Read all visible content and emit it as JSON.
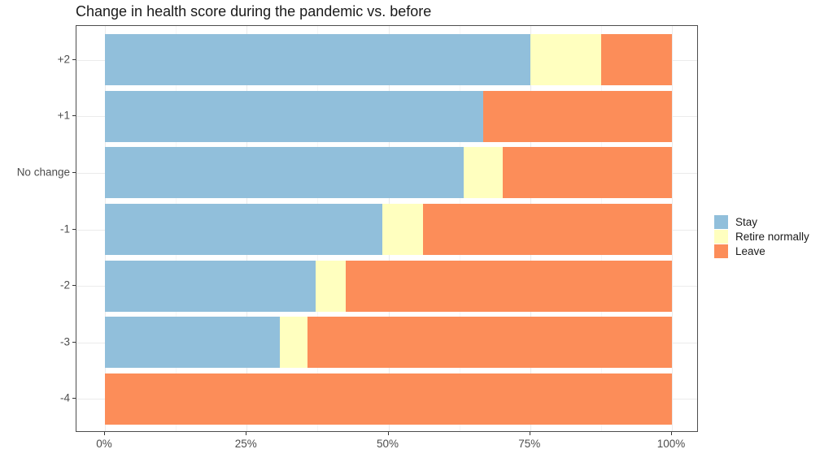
{
  "title": "Change in health score during the pandemic vs. before",
  "chart_data": {
    "type": "bar",
    "orientation": "horizontal",
    "stacked": true,
    "title": "Change in health score during the pandemic vs. before",
    "categories": [
      "+2",
      "+1",
      "No change",
      "-1",
      "-2",
      "-3",
      "-4"
    ],
    "series": [
      {
        "name": "Stay",
        "color": "#91bfdb",
        "values": [
          75.0,
          66.7,
          63.2,
          48.9,
          37.2,
          30.8,
          0
        ]
      },
      {
        "name": "Retire normally",
        "color": "#ffffbf",
        "values": [
          12.5,
          0,
          7.0,
          7.2,
          5.2,
          4.9,
          0
        ]
      },
      {
        "name": "Leave",
        "color": "#fc8d59",
        "values": [
          12.5,
          33.3,
          29.8,
          43.9,
          57.6,
          64.3,
          100
        ]
      }
    ],
    "xlabel": "",
    "ylabel": "",
    "xlim": [
      0,
      100
    ],
    "x_tick_values": [
      0,
      25,
      50,
      75,
      100
    ],
    "x_tick_labels": [
      "0%",
      "25%",
      "50%",
      "75%",
      "100%"
    ],
    "x_minor_tick_values": [
      12.5,
      37.5,
      62.5,
      87.5
    ],
    "grid": true,
    "legend_position": "right"
  },
  "legend": {
    "items": [
      {
        "label": "Stay",
        "color": "#91bfdb"
      },
      {
        "label": "Retire normally",
        "color": "#ffffbf"
      },
      {
        "label": "Leave",
        "color": "#fc8d59"
      }
    ]
  },
  "colors": {
    "panel_border": "#4d4d4d",
    "grid_major": "#ebebeb",
    "grid_minor": "#f6f6f6",
    "axis_text": "#4d4d4d",
    "tick_mark": "#333333",
    "title_text": "#1a1a1a",
    "background": "#ffffff"
  }
}
